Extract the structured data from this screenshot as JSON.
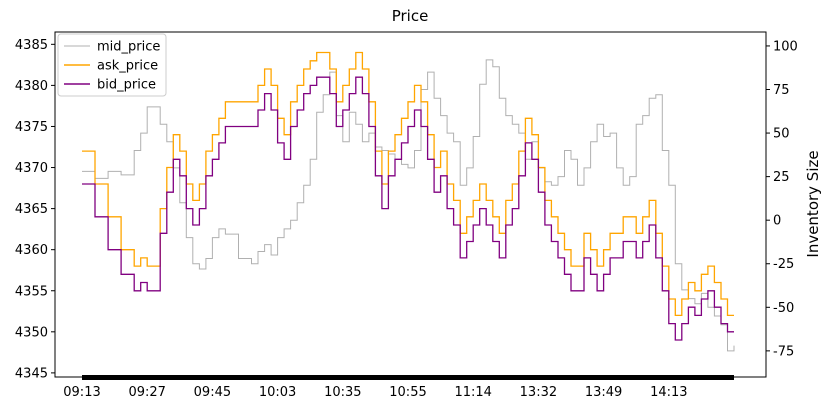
{
  "chart_data": {
    "type": "line",
    "title": "Price",
    "xlabel": "",
    "ylabel": "",
    "y2label": "Inventory Size",
    "x_tick_labels": [
      "09:13",
      "09:27",
      "09:45",
      "10:03",
      "10:35",
      "10:55",
      "11:14",
      "13:32",
      "13:49",
      "14:13"
    ],
    "x_index_range": [
      0,
      100
    ],
    "x_tick_positions": [
      0,
      10,
      20,
      30,
      40,
      50,
      60,
      70,
      80,
      90
    ],
    "ylim": [
      4344.5,
      4386.5
    ],
    "yticks": [
      4345,
      4350,
      4355,
      4360,
      4365,
      4370,
      4375,
      4380,
      4385
    ],
    "y2lim": [
      -90,
      108
    ],
    "y2ticks": [
      -75,
      -50,
      -25,
      0,
      25,
      50,
      75,
      100
    ],
    "legend": {
      "placement": "top-left",
      "entries": [
        "mid_price",
        "ask_price",
        "bid_price"
      ]
    },
    "colors": {
      "mid_price": "#b0b0b0",
      "ask_price": "#ffa500",
      "bid_price": "#800080"
    },
    "series": [
      {
        "name": "mid_price",
        "axis": "right",
        "x": [
          0,
          2,
          4,
          6,
          8,
          9,
          10,
          12,
          13,
          14,
          15,
          16,
          17,
          18,
          19,
          20,
          21,
          22,
          24,
          26,
          27,
          28,
          29,
          30,
          31,
          32,
          33,
          34,
          35,
          36,
          37,
          38,
          39,
          40,
          41,
          42,
          43,
          44,
          45,
          46,
          47,
          48,
          49,
          50,
          51,
          52,
          53,
          54,
          55,
          56,
          57,
          58,
          59,
          60,
          61,
          62,
          63,
          64,
          65,
          66,
          67,
          68,
          69,
          70,
          71,
          72,
          73,
          74,
          75,
          76,
          77,
          78,
          79,
          80,
          81,
          82,
          83,
          84,
          85,
          86,
          87,
          88,
          89,
          90,
          91,
          92,
          93,
          94,
          95,
          96,
          97,
          98,
          99,
          100
        ],
        "y": [
          28,
          24,
          28,
          26,
          40,
          50,
          65,
          55,
          45,
          30,
          10,
          -10,
          -25,
          -28,
          -22,
          -10,
          -5,
          -8,
          -22,
          -25,
          -18,
          -14,
          -20,
          -10,
          -5,
          0,
          10,
          20,
          35,
          62,
          72,
          85,
          60,
          45,
          62,
          55,
          45,
          50,
          42,
          40,
          38,
          35,
          32,
          30,
          40,
          75,
          85,
          70,
          60,
          50,
          45,
          20,
          30,
          48,
          78,
          92,
          88,
          70,
          60,
          55,
          50,
          35,
          45,
          30,
          22,
          20,
          25,
          40,
          35,
          20,
          30,
          45,
          55,
          48,
          50,
          30,
          20,
          25,
          55,
          60,
          70,
          72,
          40,
          20,
          -25,
          -40,
          -45,
          -48,
          -42,
          -50,
          -55,
          -60,
          -75,
          -72
        ]
      },
      {
        "name": "ask_price",
        "axis": "left",
        "x": [
          0,
          2,
          4,
          6,
          8,
          9,
          10,
          12,
          13,
          14,
          15,
          16,
          17,
          18,
          19,
          20,
          21,
          22,
          24,
          26,
          27,
          28,
          29,
          30,
          31,
          32,
          33,
          34,
          35,
          36,
          37,
          38,
          39,
          40,
          41,
          42,
          43,
          44,
          45,
          46,
          47,
          48,
          49,
          50,
          51,
          52,
          53,
          54,
          55,
          56,
          57,
          58,
          59,
          60,
          61,
          62,
          63,
          64,
          65,
          66,
          67,
          68,
          69,
          70,
          71,
          72,
          73,
          74,
          75,
          76,
          77,
          78,
          79,
          80,
          81,
          82,
          83,
          84,
          85,
          86,
          87,
          88,
          89,
          90,
          91,
          92,
          93,
          94,
          95,
          96,
          97,
          98,
          99,
          100
        ],
        "y": [
          4372,
          4368,
          4364,
          4360,
          4358,
          4359,
          4358,
          4365,
          4370,
          4374,
          4372,
          4368,
          4366,
          4368,
          4372,
          4374,
          4376,
          4378,
          4378,
          4378,
          4380,
          4382,
          4380,
          4376,
          4374,
          4378,
          4380,
          4382,
          4383,
          4384,
          4384,
          4382,
          4378,
          4380,
          4382,
          4384,
          4382,
          4378,
          4372,
          4368,
          4372,
          4374,
          4376,
          4378,
          4380,
          4378,
          4374,
          4370,
          4372,
          4368,
          4366,
          4362,
          4364,
          4366,
          4368,
          4366,
          4364,
          4362,
          4366,
          4368,
          4372,
          4376,
          4374,
          4370,
          4366,
          4364,
          4362,
          4360,
          4358,
          4358,
          4362,
          4360,
          4358,
          4360,
          4362,
          4362,
          4364,
          4364,
          4362,
          4364,
          4366,
          4362,
          4358,
          4354,
          4352,
          4354,
          4356,
          4355,
          4357,
          4358,
          4356,
          4354,
          4352,
          4352
        ]
      },
      {
        "name": "bid_price",
        "axis": "left",
        "x": [
          0,
          2,
          4,
          6,
          8,
          9,
          10,
          12,
          13,
          14,
          15,
          16,
          17,
          18,
          19,
          20,
          21,
          22,
          24,
          26,
          27,
          28,
          29,
          30,
          31,
          32,
          33,
          34,
          35,
          36,
          37,
          38,
          39,
          40,
          41,
          42,
          43,
          44,
          45,
          46,
          47,
          48,
          49,
          50,
          51,
          52,
          53,
          54,
          55,
          56,
          57,
          58,
          59,
          60,
          61,
          62,
          63,
          64,
          65,
          66,
          67,
          68,
          69,
          70,
          71,
          72,
          73,
          74,
          75,
          76,
          77,
          78,
          79,
          80,
          81,
          82,
          83,
          84,
          85,
          86,
          87,
          88,
          89,
          90,
          91,
          92,
          93,
          94,
          95,
          96,
          97,
          98,
          99,
          100
        ],
        "y": [
          4368,
          4364,
          4360,
          4357,
          4355,
          4356,
          4355,
          4362,
          4367,
          4371,
          4369,
          4365,
          4363,
          4365,
          4369,
          4371,
          4373,
          4375,
          4375,
          4375,
          4377,
          4379,
          4377,
          4373,
          4371,
          4375,
          4377,
          4379,
          4380,
          4381,
          4381,
          4379,
          4375,
          4377,
          4379,
          4381,
          4379,
          4375,
          4369,
          4365,
          4369,
          4371,
          4373,
          4375,
          4377,
          4375,
          4371,
          4367,
          4369,
          4365,
          4363,
          4359,
          4361,
          4363,
          4365,
          4363,
          4361,
          4359,
          4363,
          4365,
          4369,
          4373,
          4371,
          4367,
          4363,
          4361,
          4359,
          4357,
          4355,
          4355,
          4359,
          4357,
          4355,
          4357,
          4359,
          4359,
          4361,
          4361,
          4359,
          4361,
          4363,
          4359,
          4355,
          4351,
          4349,
          4351,
          4353,
          4352,
          4354,
          4355,
          4353,
          4351,
          4350,
          4350
        ]
      }
    ]
  }
}
